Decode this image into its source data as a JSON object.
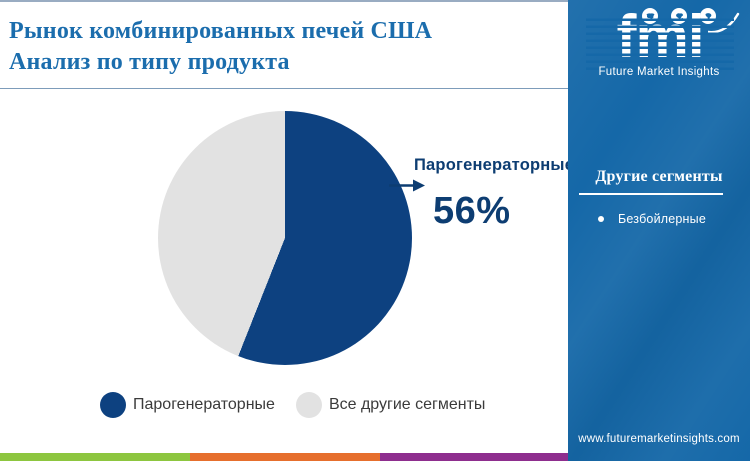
{
  "title": {
    "line1": "Рынок комбинированных печей США",
    "line2": "Анализ по типу продукта"
  },
  "chart_data": {
    "type": "pie",
    "labels": [
      "Парогенераторные",
      "Все другие сегменты"
    ],
    "values": [
      56,
      44
    ],
    "colors": {
      "primary": "#0d4180",
      "secondary": "#e2e2e2"
    },
    "start_angle_deg": 0,
    "direction": "clockwise",
    "legend_position": "bottom",
    "annotation": {
      "label": "Парогенераторные",
      "value_text": "56%"
    }
  },
  "callout": {
    "label": "Парогенераторные",
    "value": "56%",
    "arrow_color": "#0d3d72"
  },
  "legend": [
    {
      "label": "Парогенераторные",
      "color": "#0d4180"
    },
    {
      "label": "Все другие сегменты",
      "color": "#e2e2e2"
    }
  ],
  "sidebar": {
    "bg_color": "#1568a8",
    "logo": {
      "wordmark": "fmi",
      "subtitle": "Future Market Insights",
      "icons": [
        "globe-americas-icon",
        "globe-europe-icon",
        "globe-asia-icon"
      ]
    },
    "section_title": "Другие сегменты",
    "items": [
      "Безбойлерные"
    ],
    "website": "www.futuremarketinsights.com"
  },
  "footer_stripes": [
    "#8dc63f",
    "#e66f2d",
    "#8e2e8e"
  ]
}
